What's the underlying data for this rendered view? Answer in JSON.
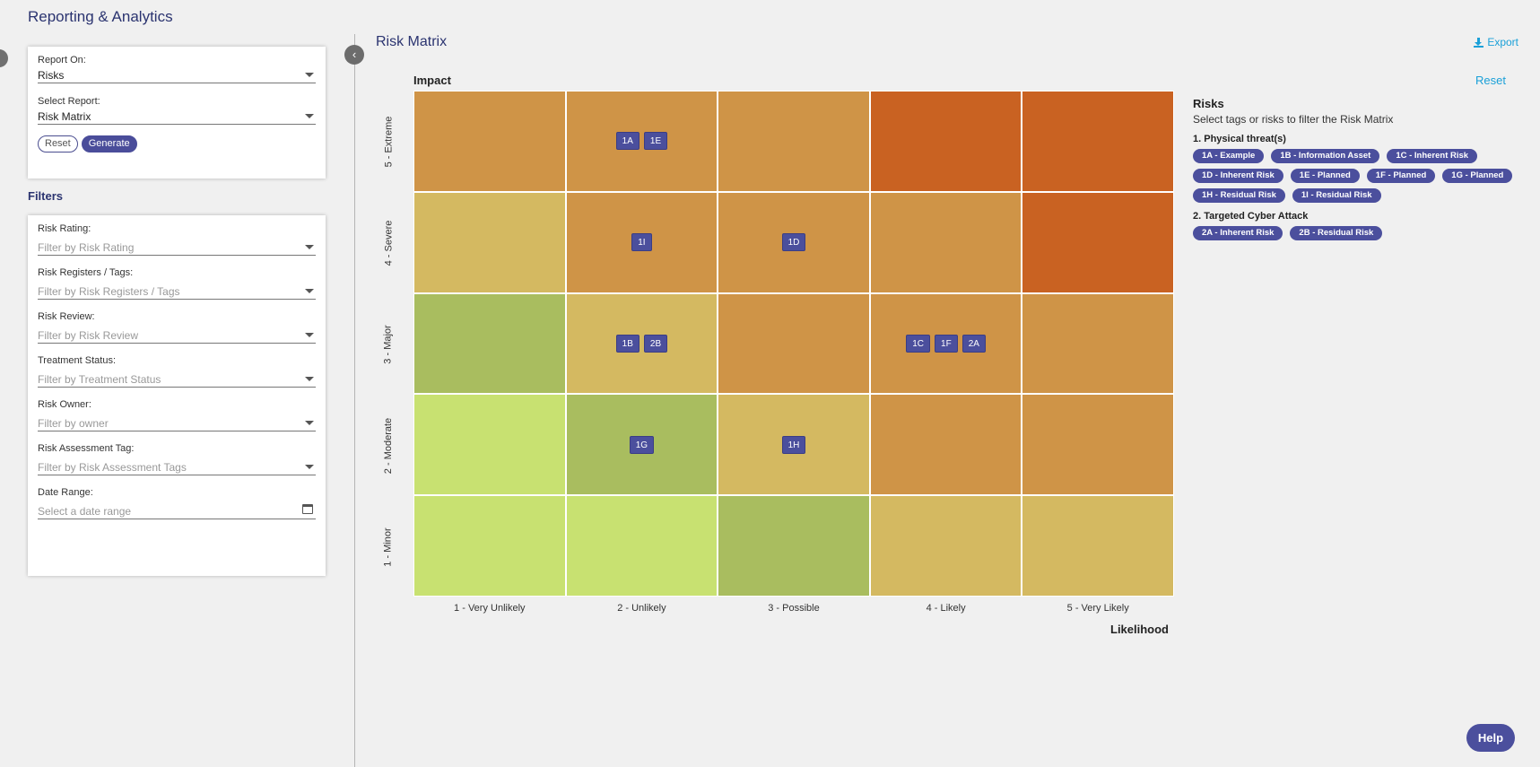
{
  "app_title": "Reporting & Analytics",
  "report_panel": {
    "report_on_label": "Report On:",
    "report_on_value": "Risks",
    "select_report_label": "Select Report:",
    "select_report_value": "Risk Matrix",
    "reset_label": "Reset",
    "generate_label": "Generate"
  },
  "filters": {
    "heading": "Filters",
    "items": [
      {
        "label": "Risk Rating:",
        "placeholder": "Filter by Risk Rating"
      },
      {
        "label": "Risk Registers / Tags:",
        "placeholder": "Filter by Risk Registers / Tags"
      },
      {
        "label": "Risk Review:",
        "placeholder": "Filter by Risk Review"
      },
      {
        "label": "Treatment Status:",
        "placeholder": "Filter by Treatment Status"
      },
      {
        "label": "Risk Owner:",
        "placeholder": "Filter by owner"
      },
      {
        "label": "Risk Assessment Tag:",
        "placeholder": "Filter by Risk Assessment Tags"
      }
    ],
    "date_range": {
      "label": "Date Range:",
      "placeholder": "Select a date range"
    }
  },
  "matrix": {
    "title": "Risk Matrix",
    "export_label": "Export",
    "reset_label": "Reset",
    "impact_label": "Impact",
    "likelihood_label": "Likelihood",
    "rows": [
      "5 - Extreme",
      "4 - Severe",
      "3 - Major",
      "2 - Moderate",
      "1 - Minor"
    ],
    "columns": [
      "1 - Very Unlikely",
      "2 - Unlikely",
      "3 - Possible",
      "4 - Likely",
      "5 - Very Likely"
    ],
    "cells": [
      [
        {
          "color": "#cf9447",
          "tags": []
        },
        {
          "color": "#cf9447",
          "tags": [
            "1A",
            "1E"
          ]
        },
        {
          "color": "#cf9447",
          "tags": []
        },
        {
          "color": "#c96222",
          "tags": []
        },
        {
          "color": "#c96222",
          "tags": []
        }
      ],
      [
        {
          "color": "#d4b961",
          "tags": []
        },
        {
          "color": "#cf9447",
          "tags": [
            "1I"
          ]
        },
        {
          "color": "#cf9447",
          "tags": [
            "1D"
          ]
        },
        {
          "color": "#cf9447",
          "tags": []
        },
        {
          "color": "#c96222",
          "tags": []
        }
      ],
      [
        {
          "color": "#a9bd5f",
          "tags": []
        },
        {
          "color": "#d4b961",
          "tags": [
            "1B",
            "2B"
          ]
        },
        {
          "color": "#cf9447",
          "tags": []
        },
        {
          "color": "#cf9447",
          "tags": [
            "1C",
            "1F",
            "2A"
          ]
        },
        {
          "color": "#cf9447",
          "tags": []
        }
      ],
      [
        {
          "color": "#c8e171",
          "tags": []
        },
        {
          "color": "#a9bd5f",
          "tags": [
            "1G"
          ]
        },
        {
          "color": "#d4b961",
          "tags": [
            "1H"
          ]
        },
        {
          "color": "#cf9447",
          "tags": []
        },
        {
          "color": "#cf9447",
          "tags": []
        }
      ],
      [
        {
          "color": "#c8e171",
          "tags": []
        },
        {
          "color": "#c8e171",
          "tags": []
        },
        {
          "color": "#a9bd5f",
          "tags": []
        },
        {
          "color": "#d4b961",
          "tags": []
        },
        {
          "color": "#d4b961",
          "tags": []
        }
      ]
    ]
  },
  "risks_panel": {
    "title": "Risks",
    "subtitle": "Select tags or risks to filter the Risk Matrix",
    "groups": [
      {
        "title": "1. Physical threat(s)",
        "chips": [
          "1A - Example",
          "1B - Information Asset",
          "1C - Inherent Risk",
          "1D - Inherent Risk",
          "1E - Planned",
          "1F - Planned",
          "1G - Planned",
          "1H - Residual Risk",
          "1I - Residual Risk"
        ]
      },
      {
        "title": "2. Targeted Cyber Attack",
        "chips": [
          "2A - Inherent Risk",
          "2B - Residual Risk"
        ]
      }
    ]
  },
  "help_label": "Help"
}
